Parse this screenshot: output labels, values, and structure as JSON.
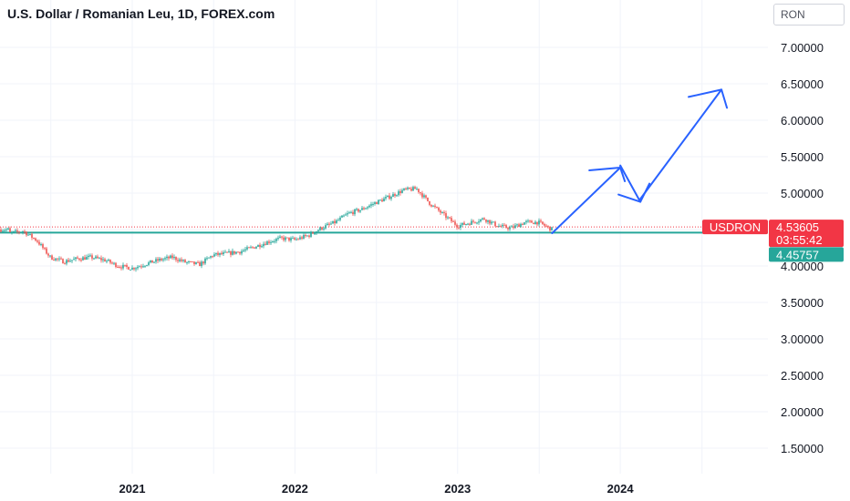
{
  "header": {
    "title": "U.S. Dollar / Romanian Leu, 1D, FOREX.com",
    "currency_button": "RON"
  },
  "colors": {
    "up": "#26a69a",
    "down": "#ef5350",
    "hline": "#26a69a",
    "price_line": "#f23645",
    "drawing": "#2962ff",
    "grid": "#f0f3fa"
  },
  "chart_data": {
    "type": "candlestick",
    "symbol_tag": "USDRON",
    "last_price": "4.53605",
    "countdown": "03:55:42",
    "hline_price": "4.45757",
    "hline_value": 4.45757,
    "last_value": 4.53605,
    "y_ticks": [
      "7.00000",
      "6.50000",
      "6.00000",
      "5.50000",
      "5.00000",
      "4.00000",
      "3.50000",
      "3.00000",
      "2.50000",
      "2.00000",
      "1.50000"
    ],
    "x_ticks": [
      "2021",
      "2022",
      "2023",
      "2024"
    ],
    "ylim": [
      1.2,
      7.5
    ],
    "grid": true,
    "price_path": [
      [
        "2020-04-01",
        4.45
      ],
      [
        "2020-05-01",
        4.48
      ],
      [
        "2020-06-01",
        4.35
      ],
      [
        "2020-07-01",
        4.12
      ],
      [
        "2020-08-01",
        4.06
      ],
      [
        "2020-09-01",
        4.1
      ],
      [
        "2020-10-01",
        4.12
      ],
      [
        "2020-11-01",
        4.08
      ],
      [
        "2020-12-01",
        4.0
      ],
      [
        "2021-01-01",
        3.97
      ],
      [
        "2021-02-01",
        4.03
      ],
      [
        "2021-03-01",
        4.08
      ],
      [
        "2021-04-01",
        4.12
      ],
      [
        "2021-05-01",
        4.05
      ],
      [
        "2021-06-01",
        4.02
      ],
      [
        "2021-07-01",
        4.15
      ],
      [
        "2021-08-01",
        4.17
      ],
      [
        "2021-09-01",
        4.2
      ],
      [
        "2021-10-01",
        4.26
      ],
      [
        "2021-11-01",
        4.33
      ],
      [
        "2021-12-01",
        4.38
      ],
      [
        "2022-01-01",
        4.36
      ],
      [
        "2022-02-01",
        4.42
      ],
      [
        "2022-03-01",
        4.52
      ],
      [
        "2022-04-01",
        4.6
      ],
      [
        "2022-05-01",
        4.72
      ],
      [
        "2022-06-01",
        4.78
      ],
      [
        "2022-07-01",
        4.87
      ],
      [
        "2022-08-01",
        4.95
      ],
      [
        "2022-09-01",
        5.04
      ],
      [
        "2022-10-01",
        5.06
      ],
      [
        "2022-11-01",
        4.85
      ],
      [
        "2022-12-01",
        4.7
      ],
      [
        "2023-01-01",
        4.55
      ],
      [
        "2023-02-01",
        4.6
      ],
      [
        "2023-03-01",
        4.65
      ],
      [
        "2023-04-01",
        4.55
      ],
      [
        "2023-05-01",
        4.52
      ],
      [
        "2023-06-01",
        4.6
      ],
      [
        "2023-07-01",
        4.6
      ],
      [
        "2023-08-01",
        4.5
      ]
    ],
    "drawing_path": [
      [
        "2023-08-01",
        4.45
      ],
      [
        "2024-01-01",
        5.35
      ],
      [
        "2024-01-01",
        5.38
      ],
      [
        "2024-02-15",
        4.88
      ],
      [
        "2024-02-15",
        4.92
      ],
      [
        "2024-08-15",
        6.42
      ]
    ]
  }
}
